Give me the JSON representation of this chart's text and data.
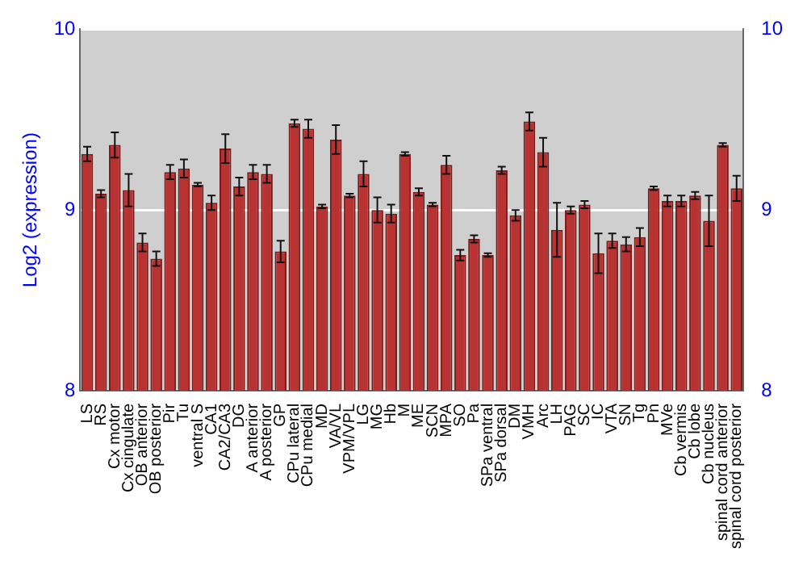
{
  "chart_data": {
    "type": "bar",
    "ylabel": "Log2 (expression)",
    "categories": [
      "LS",
      "RS",
      "Cx motor",
      "Cx cingulate",
      "OB anterior",
      "OB posterior",
      "Pir",
      "Tu",
      "ventral S",
      "CA1",
      "CA2/CA3",
      "DG",
      "A anterior",
      "A posterior",
      "GP",
      "CPu lateral",
      "CPu medial",
      "MD",
      "VA/VL",
      "VPM/VPL",
      "LG",
      "MG",
      "Hb",
      "M",
      "ME",
      "SCN",
      "MPA",
      "SO",
      "Pa",
      "SPa ventral",
      "SPa dorsal",
      "DM",
      "VMH",
      "Arc",
      "LH",
      "PAG",
      "SC",
      "IC",
      "VTA",
      "SN",
      "Tg",
      "Pn",
      "MVe",
      "Cb vermis",
      "Cb lobe",
      "Cb nucleus",
      "spinal cord anterior",
      "spinal cord posterior"
    ],
    "values": [
      9.31,
      9.09,
      9.36,
      9.11,
      8.82,
      8.73,
      9.21,
      9.23,
      9.14,
      9.04,
      9.34,
      9.13,
      9.21,
      9.2,
      8.77,
      9.48,
      9.45,
      9.02,
      9.39,
      9.08,
      9.2,
      9.0,
      8.98,
      9.31,
      9.1,
      9.03,
      9.25,
      8.75,
      8.84,
      8.75,
      9.22,
      8.97,
      9.49,
      9.32,
      8.89,
      9.0,
      9.03,
      8.76,
      8.83,
      8.81,
      8.85,
      9.12,
      9.05,
      9.05,
      9.08,
      8.94,
      9.36,
      9.12
    ],
    "errors": [
      0.04,
      0.02,
      0.07,
      0.09,
      0.05,
      0.04,
      0.04,
      0.05,
      0.01,
      0.04,
      0.08,
      0.05,
      0.04,
      0.05,
      0.06,
      0.02,
      0.05,
      0.01,
      0.08,
      0.01,
      0.07,
      0.07,
      0.05,
      0.01,
      0.02,
      0.01,
      0.05,
      0.03,
      0.02,
      0.01,
      0.02,
      0.03,
      0.05,
      0.08,
      0.15,
      0.02,
      0.02,
      0.11,
      0.04,
      0.04,
      0.05,
      0.01,
      0.03,
      0.03,
      0.02,
      0.14,
      0.01,
      0.07
    ],
    "color": "#b83232",
    "ylim": [
      8,
      10
    ],
    "yticks": [
      8,
      9,
      10
    ],
    "y2lim": [
      8,
      10
    ],
    "y2ticks": [
      8,
      9,
      10
    ],
    "grid": "y"
  }
}
